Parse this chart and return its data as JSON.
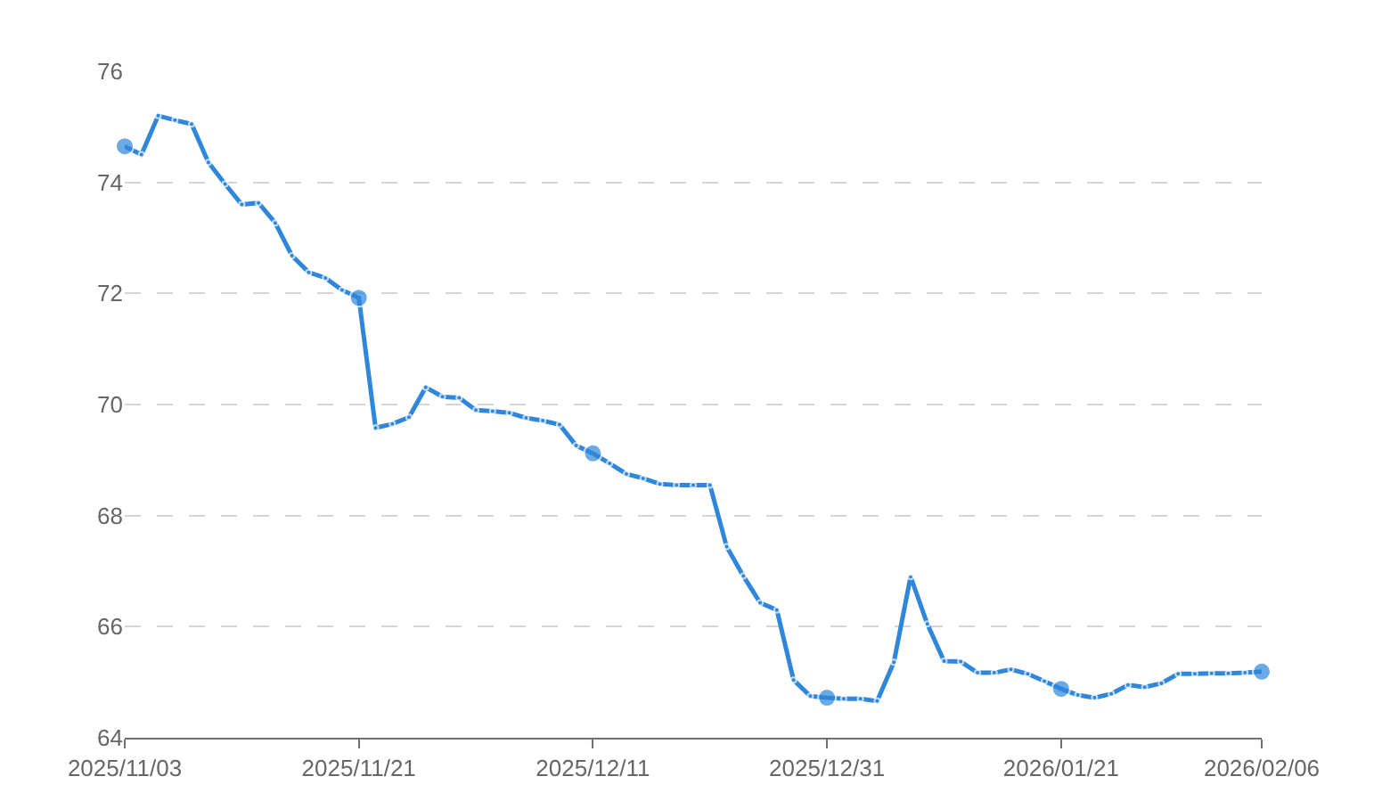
{
  "chart_data": {
    "type": "line",
    "categories": [
      "2025/11/03",
      null,
      null,
      null,
      null,
      null,
      null,
      null,
      null,
      null,
      null,
      null,
      null,
      null,
      "2025/11/21",
      null,
      null,
      null,
      null,
      null,
      null,
      null,
      null,
      null,
      null,
      null,
      null,
      null,
      "2025/12/11",
      null,
      null,
      null,
      null,
      null,
      null,
      null,
      null,
      null,
      null,
      null,
      null,
      null,
      "2025/12/31",
      null,
      null,
      null,
      null,
      null,
      null,
      null,
      null,
      null,
      null,
      null,
      null,
      null,
      "2026/01/21",
      null,
      null,
      null,
      null,
      null,
      null,
      null,
      null,
      null,
      null,
      null,
      "2026/02/06"
    ],
    "series": [
      {
        "color": "#2f87dc",
        "values": [
          74.65,
          74.5,
          75.2,
          75.12,
          75.05,
          74.36,
          73.97,
          73.6,
          73.63,
          73.27,
          72.68,
          72.38,
          72.28,
          72.06,
          71.92,
          69.58,
          69.65,
          69.77,
          70.31,
          70.14,
          70.12,
          69.9,
          69.88,
          69.85,
          69.76,
          69.71,
          69.64,
          69.26,
          69.12,
          68.94,
          68.75,
          68.67,
          68.57,
          68.55,
          68.55,
          68.55,
          67.44,
          66.91,
          66.43,
          66.3,
          65.04,
          64.75,
          64.72,
          64.7,
          64.7,
          64.66,
          65.36,
          66.9,
          66.05,
          65.38,
          65.37,
          65.17,
          65.17,
          65.23,
          65.15,
          65.02,
          64.88,
          64.77,
          64.72,
          64.79,
          64.95,
          64.91,
          64.98,
          65.15,
          65.15,
          65.16,
          65.16,
          65.17,
          65.19
        ]
      }
    ],
    "ylim": [
      64,
      76
    ],
    "yticks": [
      64,
      66,
      68,
      70,
      72,
      74,
      76
    ],
    "grid": "y",
    "marker": "circle",
    "line_style": "solid"
  }
}
